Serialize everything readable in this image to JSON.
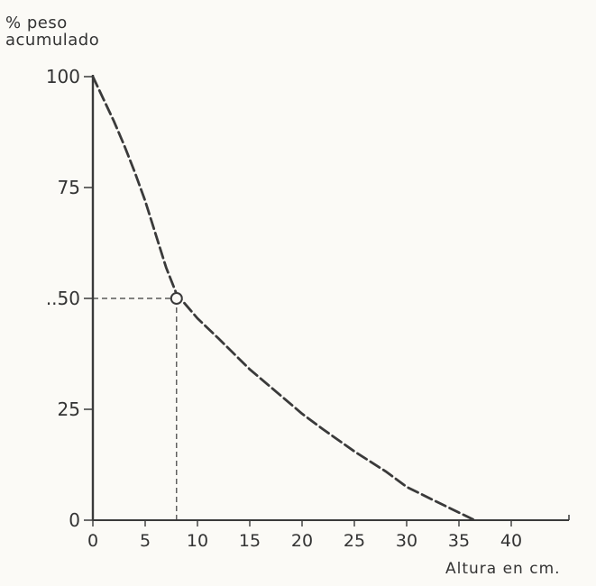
{
  "chart_data": {
    "type": "line",
    "ylabel_lines": [
      "% peso",
      "acumulado"
    ],
    "xlabel": "Altura en cm.",
    "xlim": [
      0,
      45
    ],
    "ylim": [
      0,
      100
    ],
    "x_ticks": [
      0,
      5,
      10,
      15,
      20,
      25,
      30,
      35,
      40
    ],
    "x_tick_labels": [
      "0",
      "5",
      "10",
      "15",
      "20",
      "25",
      "30",
      "35",
      "40"
    ],
    "y_ticks": [
      0,
      25,
      50,
      75,
      100
    ],
    "y_tick_labels": [
      "0",
      "25",
      "50",
      "75",
      "100"
    ],
    "y_tick_label_50": "..50",
    "grid": false,
    "series": [
      {
        "style": "dashed",
        "x": [
          0,
          1,
          2,
          3,
          4,
          5,
          6,
          7,
          8,
          10,
          12,
          15,
          18,
          20,
          22,
          25,
          28,
          30,
          33,
          36.5
        ],
        "y": [
          100,
          95,
          90,
          84.5,
          78.5,
          72,
          64.5,
          57,
          51,
          45.5,
          41,
          34,
          28,
          24,
          20.5,
          15.5,
          11,
          7.5,
          4,
          0
        ]
      }
    ],
    "annotations": [
      {
        "type": "point",
        "shape": "circle",
        "x": 8,
        "y": 50
      },
      {
        "type": "reference-lines",
        "x": 8,
        "y": 50,
        "style": "dashed"
      }
    ]
  }
}
